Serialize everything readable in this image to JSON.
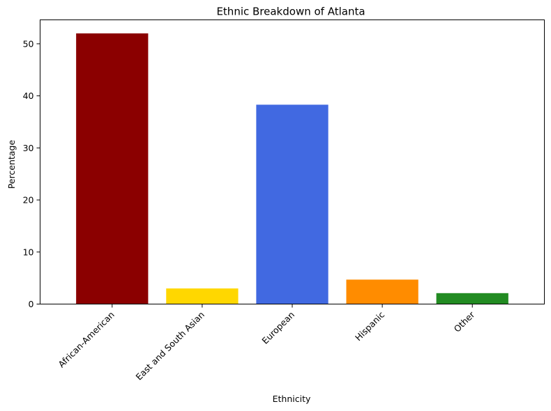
{
  "chart_data": {
    "type": "bar",
    "title": "Ethnic Breakdown of Atlanta",
    "xlabel": "Ethnicity",
    "ylabel": "Percentage",
    "categories": [
      "African-American",
      "East and South Asian",
      "European",
      "Hispanic",
      "Other"
    ],
    "values": [
      52.0,
      3.0,
      38.3,
      4.7,
      2.1
    ],
    "colors": [
      "#8b0000",
      "#ffd700",
      "#4169e1",
      "#ff8c00",
      "#228b22"
    ],
    "ylim": [
      0,
      54.6
    ],
    "yticks": [
      0,
      10,
      20,
      30,
      40,
      50
    ],
    "grid": false
  }
}
